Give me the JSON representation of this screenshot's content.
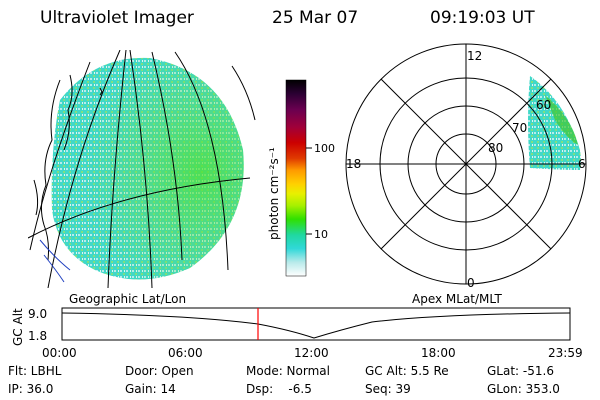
{
  "header": {
    "title": "Ultraviolet Imager",
    "date": "25 Mar 07",
    "time": "09:19:03 UT"
  },
  "geo_panel": {
    "label": "Geographic Lat/Lon"
  },
  "colorbar": {
    "unit_label": "photon cm⁻²s⁻¹",
    "ticks": [
      "100",
      "10"
    ],
    "colors": [
      "#000000",
      "#2b0033",
      "#6a0050",
      "#a0003a",
      "#cc0000",
      "#e03a00",
      "#ff9a00",
      "#ffd000",
      "#e8f000",
      "#a8f000",
      "#30e000",
      "#20d8a0",
      "#30d8d8",
      "#b8eaea",
      "#ffffff"
    ]
  },
  "polar_panel": {
    "label": "Apex MLat/MLT",
    "mlt_labels": [
      "12",
      "18",
      "6",
      "0"
    ],
    "lat_labels": [
      "60",
      "70",
      "80"
    ]
  },
  "timeline": {
    "axis_title": "GC Alt",
    "y_ticks": [
      "9.0",
      "1.8"
    ],
    "x_ticks": [
      "00:00",
      "06:00",
      "12:00",
      "18:00",
      "23:59"
    ],
    "current_time_marker": "09:19:03",
    "marker_color": "#ff0000"
  },
  "status": {
    "row1": [
      "Flt: LBHL",
      "Door: Open",
      "Mode: Normal",
      "GC Alt: 5.5 Re",
      "GLat: -51.6"
    ],
    "row2": [
      "IP: 36.0",
      "Gain: 14",
      "Dsp:    -6.5",
      "Seq: 39",
      "GLon: 353.0"
    ]
  }
}
